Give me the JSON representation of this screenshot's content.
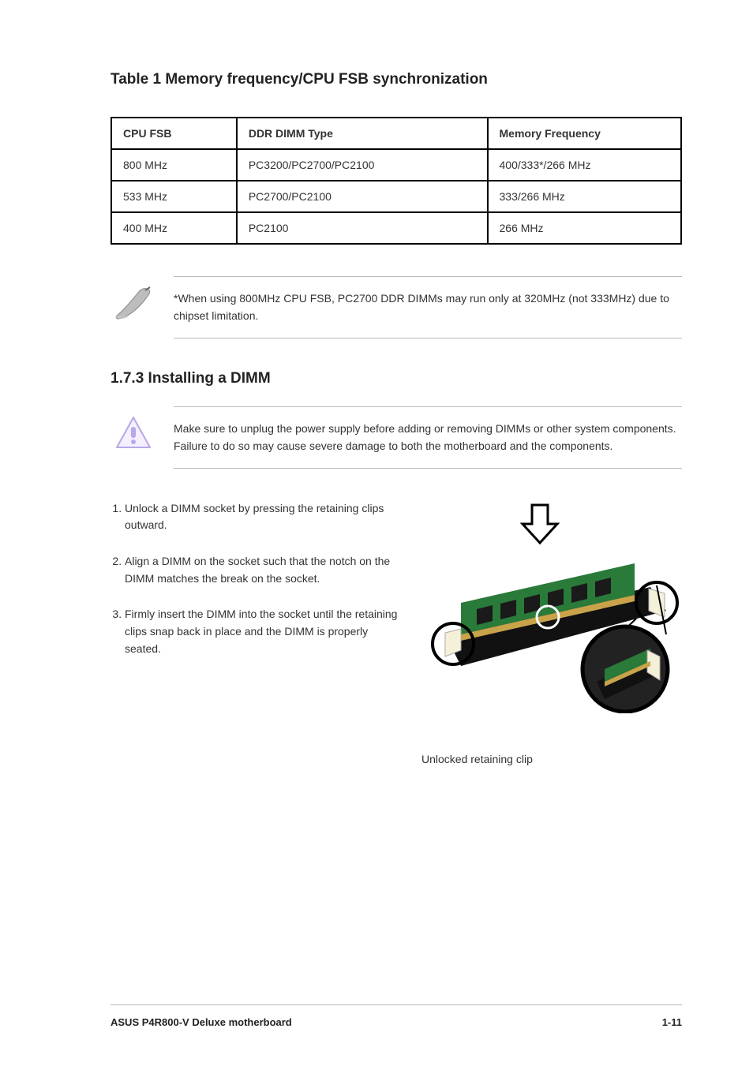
{
  "heading": "Table 1 Memory frequency/CPU FSB synchronization",
  "freq_table": {
    "headers": [
      "CPU FSB",
      "DDR DIMM Type",
      "Memory Frequency"
    ],
    "rows": [
      [
        "800 MHz",
        "PC3200/PC2700/PC2100",
        "400/333*/266 MHz"
      ],
      [
        "533 MHz",
        "PC2700/PC2100",
        "333/266 MHz"
      ],
      [
        "400 MHz",
        "PC2100",
        "266 MHz"
      ]
    ],
    "col_widths": [
      "22%",
      "44%",
      "34%"
    ]
  },
  "note": {
    "text": "*When using 800MHz CPU FSB, PC2700 DDR DIMMs may run only at 320MHz (not 333MHz) due to chipset limitation."
  },
  "section_title": "1.7.3   Installing a DIMM",
  "caution": {
    "text": "Make sure to unplug the power supply before adding or removing DIMMs or other system components. Failure to do so may cause severe damage to both the motherboard and the components."
  },
  "steps": [
    "Unlock a DIMM socket by pressing the retaining clips outward.",
    "Align a DIMM on the socket such that the notch on the DIMM matches the break on the socket.",
    "Firmly insert the DIMM into the socket until the retaining clips snap back in place and the DIMM is properly seated."
  ],
  "figure": {
    "caption": "Unlocked retaining clip",
    "colors": {
      "pcb": "#2a7a3a",
      "chips": "#1a1a1a",
      "slot": "#111111",
      "clip": "#f5f0d8",
      "arrow_fill": "#ffffff",
      "arrow_stroke": "#000000",
      "ring": "#000000"
    }
  },
  "footer": {
    "left": "ASUS P4R800-V Deluxe motherboard",
    "right": "1-11"
  }
}
